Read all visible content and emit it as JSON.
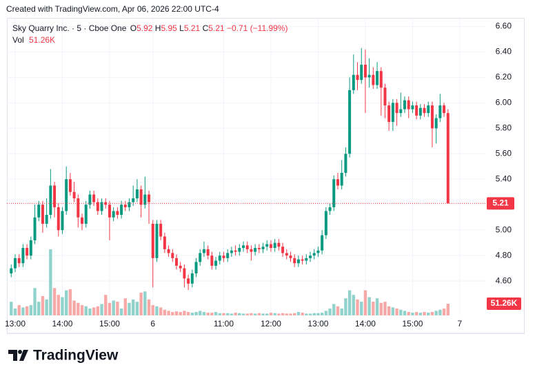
{
  "header": "Created with TradingView.com, Apr 06, 2026 22:00 UTC-4",
  "chart_data": {
    "type": "candlestick",
    "title": "Sky Quarry Inc. · 5 · Cboe One",
    "legend": {
      "open_label": "O",
      "open": 5.92,
      "high_label": "H",
      "high": 5.95,
      "low_label": "L",
      "low": 5.21,
      "close_label": "C",
      "close": 5.21,
      "change": {
        "value": -0.71,
        "label": "−0.71"
      },
      "change_pct": {
        "value": -11.99,
        "label": "(−11.99%)"
      },
      "volume_label": "Vol",
      "volume": {
        "value": 51.26,
        "label": "51.26K"
      }
    },
    "open": [
      4.66,
      4.7,
      4.78,
      4.74,
      4.86,
      4.8,
      4.92,
      5.1,
      5.2,
      5.05,
      5.12,
      5.35,
      5.18,
      5.0,
      5.15,
      5.4,
      5.3,
      5.25,
      5.1,
      5.05,
      5.2,
      5.28,
      5.22,
      5.15,
      5.22,
      5.2,
      5.1,
      5.15,
      5.12,
      5.2,
      5.18,
      5.22,
      5.25,
      5.32,
      5.2,
      5.28,
      5.05,
      4.78,
      5.05,
      4.95,
      4.85,
      4.82,
      4.78,
      4.72,
      4.7,
      4.62,
      4.58,
      4.66,
      4.75,
      4.82,
      4.85,
      4.8,
      4.72,
      4.76,
      4.8,
      4.78,
      4.82,
      4.84,
      4.83,
      4.86,
      4.88,
      4.85,
      4.83,
      4.86,
      4.85,
      4.87,
      4.89,
      4.86,
      4.9,
      4.87,
      4.82,
      4.8,
      4.78,
      4.74,
      4.77,
      4.76,
      4.78,
      4.8,
      4.82,
      4.84,
      4.96,
      5.15,
      5.18,
      5.4,
      5.35,
      5.45,
      5.6,
      6.1,
      6.22,
      6.18,
      6.3,
      6.2,
      6.22,
      6.14,
      6.25,
      6.12,
      5.98,
      5.85,
      6.0,
      5.92,
      5.95,
      6.02,
      5.95,
      5.98,
      5.9,
      5.96,
      5.92,
      5.98,
      5.8,
      5.88,
      5.98,
      5.92
    ],
    "high": [
      4.73,
      4.81,
      4.81,
      4.89,
      4.89,
      4.95,
      5.2,
      5.23,
      5.23,
      5.25,
      5.48,
      5.38,
      5.21,
      5.18,
      5.5,
      5.45,
      5.38,
      5.28,
      5.13,
      5.23,
      5.31,
      5.31,
      5.25,
      5.25,
      5.25,
      5.23,
      5.18,
      5.18,
      5.23,
      5.23,
      5.25,
      5.35,
      5.4,
      5.35,
      5.42,
      5.31,
      5.08,
      5.08,
      5.08,
      4.98,
      4.88,
      4.85,
      4.81,
      4.75,
      4.73,
      4.65,
      4.69,
      4.78,
      4.85,
      4.91,
      4.88,
      4.83,
      4.79,
      4.83,
      4.83,
      4.85,
      4.87,
      4.88,
      4.89,
      4.91,
      4.91,
      4.88,
      4.89,
      4.89,
      4.9,
      4.92,
      4.92,
      4.93,
      4.93,
      4.9,
      4.85,
      4.83,
      4.81,
      4.8,
      4.8,
      4.81,
      4.83,
      4.85,
      4.87,
      5.0,
      5.18,
      5.21,
      5.43,
      5.45,
      5.55,
      5.65,
      6.2,
      6.38,
      6.32,
      6.43,
      6.42,
      6.35,
      6.28,
      6.32,
      6.28,
      6.15,
      6.01,
      6.03,
      6.03,
      6.08,
      6.05,
      6.05,
      6.01,
      6.01,
      5.99,
      5.99,
      6.01,
      6.01,
      5.91,
      6.07,
      6.0,
      5.95
    ],
    "low": [
      4.63,
      4.67,
      4.71,
      4.71,
      4.77,
      4.77,
      4.89,
      5.07,
      4.98,
      5.02,
      5.09,
      5.1,
      4.95,
      4.97,
      5.12,
      5.27,
      5.22,
      5.02,
      5.0,
      5.02,
      5.17,
      5.19,
      5.12,
      5.12,
      5.17,
      4.92,
      5.07,
      5.09,
      5.09,
      5.15,
      5.15,
      5.19,
      5.22,
      5.1,
      5.17,
      5.05,
      4.55,
      4.75,
      4.92,
      4.82,
      4.79,
      4.75,
      4.69,
      4.67,
      4.55,
      4.53,
      4.55,
      4.63,
      4.72,
      4.79,
      4.77,
      4.69,
      4.69,
      4.73,
      4.75,
      4.75,
      4.79,
      4.8,
      4.8,
      4.83,
      4.82,
      4.76,
      4.8,
      4.82,
      4.82,
      4.84,
      4.83,
      4.83,
      4.84,
      4.79,
      4.77,
      4.75,
      4.71,
      4.71,
      4.73,
      4.73,
      4.75,
      4.77,
      4.79,
      4.81,
      4.93,
      5.12,
      5.15,
      5.32,
      5.32,
      5.42,
      5.57,
      6.07,
      6.1,
      6.15,
      5.92,
      6.12,
      6.11,
      6.11,
      5.9,
      5.88,
      5.78,
      5.78,
      5.82,
      5.89,
      5.92,
      5.88,
      5.92,
      5.87,
      5.87,
      5.89,
      5.89,
      5.65,
      5.68,
      5.85,
      5.89,
      5.21
    ],
    "close": [
      4.7,
      4.78,
      4.74,
      4.86,
      4.8,
      4.92,
      5.1,
      5.2,
      5.05,
      5.12,
      5.35,
      5.18,
      5.0,
      5.15,
      5.4,
      5.3,
      5.25,
      5.1,
      5.05,
      5.2,
      5.28,
      5.22,
      5.15,
      5.22,
      5.2,
      5.1,
      5.15,
      5.12,
      5.2,
      5.18,
      5.22,
      5.25,
      5.32,
      5.2,
      5.28,
      5.22,
      4.78,
      5.05,
      4.95,
      4.85,
      4.82,
      4.78,
      4.72,
      4.7,
      4.62,
      4.58,
      4.66,
      4.75,
      4.82,
      4.85,
      4.8,
      4.72,
      4.76,
      4.8,
      4.78,
      4.82,
      4.84,
      4.83,
      4.86,
      4.88,
      4.85,
      4.83,
      4.86,
      4.85,
      4.87,
      4.89,
      4.86,
      4.9,
      4.87,
      4.82,
      4.8,
      4.78,
      4.74,
      4.77,
      4.76,
      4.78,
      4.8,
      4.82,
      4.84,
      4.96,
      5.15,
      5.18,
      5.4,
      5.35,
      5.45,
      5.6,
      6.1,
      6.22,
      6.18,
      6.3,
      6.2,
      6.22,
      6.14,
      6.25,
      6.12,
      5.98,
      5.85,
      6.0,
      5.92,
      5.95,
      6.02,
      5.95,
      5.98,
      5.9,
      5.96,
      5.92,
      5.98,
      5.8,
      5.88,
      5.98,
      5.92,
      5.21
    ],
    "volume": [
      60,
      30,
      45,
      35,
      40,
      45,
      120,
      60,
      85,
      70,
      290,
      120,
      90,
      80,
      110,
      115,
      65,
      55,
      45,
      40,
      30,
      35,
      40,
      50,
      90,
      55,
      65,
      60,
      30,
      75,
      55,
      70,
      60,
      100,
      105,
      70,
      45,
      40,
      35,
      25,
      20,
      15,
      18,
      15,
      20,
      15,
      12,
      15,
      20,
      15,
      12,
      12,
      15,
      10,
      10,
      10,
      8,
      12,
      10,
      8,
      8,
      10,
      8,
      10,
      8,
      8,
      12,
      10,
      8,
      10,
      8,
      8,
      10,
      15,
      12,
      8,
      8,
      10,
      10,
      12,
      20,
      30,
      50,
      40,
      30,
      75,
      110,
      90,
      70,
      60,
      110,
      80,
      60,
      75,
      55,
      60,
      40,
      35,
      30,
      25,
      20,
      15,
      12,
      15,
      12,
      15,
      12,
      15,
      20,
      25,
      30,
      51.26
    ],
    "up_color": "#089981",
    "down_color": "#f23645",
    "volume_up_color": "#92d2cc",
    "volume_down_color": "#f7a9a7",
    "xlim": [
      -1.1,
      120.5
    ],
    "ylim": [
      4.33,
      6.7
    ],
    "yticks": [
      {
        "value": 4.6,
        "label": "4.60"
      },
      {
        "value": 4.8,
        "label": "4.80"
      },
      {
        "value": 5.0,
        "label": "5.00"
      },
      {
        "value": 5.2,
        "label": "5.20"
      },
      {
        "value": 5.4,
        "label": "5.40"
      },
      {
        "value": 5.6,
        "label": "5.60"
      },
      {
        "value": 5.8,
        "label": "5.80"
      },
      {
        "value": 6.0,
        "label": "6.00"
      },
      {
        "value": 6.2,
        "label": "6.20"
      },
      {
        "value": 6.4,
        "label": "6.40"
      },
      {
        "value": 6.6,
        "label": "6.60"
      }
    ],
    "xticks": [
      {
        "value": 1,
        "label": "13:00"
      },
      {
        "value": 13,
        "label": "14:00"
      },
      {
        "value": 25,
        "label": "15:00"
      },
      {
        "value": 36,
        "label": "6"
      },
      {
        "value": 54,
        "label": "11:00"
      },
      {
        "value": 66,
        "label": "12:00"
      },
      {
        "value": 78,
        "label": "13:00"
      },
      {
        "value": 90,
        "label": "14:00"
      },
      {
        "value": 102,
        "label": "15:00"
      },
      {
        "value": 114,
        "label": "7"
      }
    ],
    "grid": true
  },
  "footer": "TradingView"
}
